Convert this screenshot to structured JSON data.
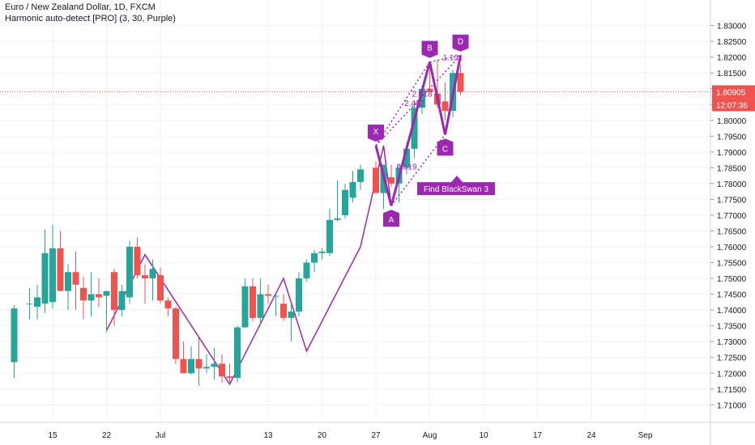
{
  "header": {
    "symbol_title": "Euro / New Zealand Dollar, 1D, FXCM",
    "indicator_label": "Harmonic auto-detect [PRO] (3, 30, Purple)"
  },
  "colors": {
    "up_candle": "#26a69a",
    "down_candle": "#ef5350",
    "pattern": "#9c27b0",
    "zigzag": "#9c27b0",
    "price_line": "#ef5350",
    "grid": "#f0f3fa",
    "axis_text": "#131722"
  },
  "chart_data": {
    "type": "candlestick",
    "y_axis_labels": [
      "1.83000",
      "1.82500",
      "1.82000",
      "1.81500",
      "1.81000",
      "1.80500",
      "1.80000",
      "1.79500",
      "1.79000",
      "1.78500",
      "1.78000",
      "1.77500",
      "1.77000",
      "1.76500",
      "1.76000",
      "1.75500",
      "1.75000",
      "1.74500",
      "1.74000",
      "1.73500",
      "1.73000",
      "1.72500",
      "1.72000",
      "1.71500",
      "1.71000"
    ],
    "ylim": [
      1.7065,
      1.8345
    ],
    "x_axis_labels": [
      "15",
      "22",
      "Jul",
      "13",
      "20",
      "27",
      "Aug",
      "10",
      "17",
      "24",
      "Sep"
    ],
    "x_label_day_index": [
      0,
      7,
      14,
      28,
      35,
      42,
      49,
      56,
      63,
      70,
      77
    ],
    "grid": true,
    "current_price": {
      "value": 1.80905,
      "label": "1.80905",
      "countdown": "12:07:36"
    },
    "candles": [
      {
        "day": -5,
        "o": 1.7235,
        "h": 1.7415,
        "l": 1.7185,
        "c": 1.7405
      },
      {
        "day": -3,
        "o": 1.742,
        "h": 1.747,
        "l": 1.737,
        "c": 1.742
      },
      {
        "day": -2,
        "o": 1.741,
        "h": 1.748,
        "l": 1.737,
        "c": 1.744
      },
      {
        "day": -1,
        "o": 1.742,
        "h": 1.7655,
        "l": 1.739,
        "c": 1.758
      },
      {
        "day": 0,
        "o": 1.7425,
        "h": 1.767,
        "l": 1.7405,
        "c": 1.7595
      },
      {
        "day": 1,
        "o": 1.7595,
        "h": 1.765,
        "l": 1.746,
        "c": 1.746
      },
      {
        "day": 2,
        "o": 1.746,
        "h": 1.7545,
        "l": 1.74,
        "c": 1.752
      },
      {
        "day": 3,
        "o": 1.752,
        "h": 1.7585,
        "l": 1.74,
        "c": 1.748
      },
      {
        "day": 4,
        "o": 1.747,
        "h": 1.7505,
        "l": 1.737,
        "c": 1.743
      },
      {
        "day": 5,
        "o": 1.743,
        "h": 1.752,
        "l": 1.738,
        "c": 1.745
      },
      {
        "day": 6,
        "o": 1.745,
        "h": 1.75,
        "l": 1.741,
        "c": 1.744
      },
      {
        "day": 7,
        "o": 1.7445,
        "h": 1.746,
        "l": 1.733,
        "c": 1.746
      },
      {
        "day": 8,
        "o": 1.752,
        "h": 1.753,
        "l": 1.735,
        "c": 1.74
      },
      {
        "day": 9,
        "o": 1.74,
        "h": 1.748,
        "l": 1.738,
        "c": 1.746
      },
      {
        "day": 10,
        "o": 1.744,
        "h": 1.762,
        "l": 1.742,
        "c": 1.76
      },
      {
        "day": 11,
        "o": 1.76,
        "h": 1.763,
        "l": 1.75,
        "c": 1.751
      },
      {
        "day": 12,
        "o": 1.751,
        "h": 1.7545,
        "l": 1.742,
        "c": 1.75
      },
      {
        "day": 13,
        "o": 1.75,
        "h": 1.756,
        "l": 1.743,
        "c": 1.753
      },
      {
        "day": 14,
        "o": 1.751,
        "h": 1.7535,
        "l": 1.742,
        "c": 1.743
      },
      {
        "day": 15,
        "o": 1.743,
        "h": 1.744,
        "l": 1.738,
        "c": 1.7405
      },
      {
        "day": 16,
        "o": 1.7405,
        "h": 1.741,
        "l": 1.723,
        "c": 1.7245
      },
      {
        "day": 17,
        "o": 1.7245,
        "h": 1.73,
        "l": 1.72,
        "c": 1.72
      },
      {
        "day": 18,
        "o": 1.72,
        "h": 1.7285,
        "l": 1.7195,
        "c": 1.7245
      },
      {
        "day": 19,
        "o": 1.7245,
        "h": 1.731,
        "l": 1.716,
        "c": 1.7215
      },
      {
        "day": 20,
        "o": 1.7215,
        "h": 1.726,
        "l": 1.72,
        "c": 1.722
      },
      {
        "day": 21,
        "o": 1.722,
        "h": 1.728,
        "l": 1.718,
        "c": 1.723
      },
      {
        "day": 22,
        "o": 1.723,
        "h": 1.726,
        "l": 1.717,
        "c": 1.719
      },
      {
        "day": 23,
        "o": 1.719,
        "h": 1.723,
        "l": 1.7165,
        "c": 1.7185
      },
      {
        "day": 24,
        "o": 1.7185,
        "h": 1.735,
        "l": 1.717,
        "c": 1.7345
      },
      {
        "day": 25,
        "o": 1.7345,
        "h": 1.75,
        "l": 1.7345,
        "c": 1.7475
      },
      {
        "day": 26,
        "o": 1.7475,
        "h": 1.75,
        "l": 1.7365,
        "c": 1.7375
      },
      {
        "day": 27,
        "o": 1.7375,
        "h": 1.75,
        "l": 1.735,
        "c": 1.745
      },
      {
        "day": 28,
        "o": 1.745,
        "h": 1.748,
        "l": 1.742,
        "c": 1.7445
      },
      {
        "day": 29,
        "o": 1.7445,
        "h": 1.745,
        "l": 1.738,
        "c": 1.7445
      },
      {
        "day": 30,
        "o": 1.742,
        "h": 1.745,
        "l": 1.7365,
        "c": 1.7375
      },
      {
        "day": 31,
        "o": 1.7375,
        "h": 1.742,
        "l": 1.73,
        "c": 1.7395
      },
      {
        "day": 32,
        "o": 1.7395,
        "h": 1.752,
        "l": 1.738,
        "c": 1.75
      },
      {
        "day": 33,
        "o": 1.75,
        "h": 1.756,
        "l": 1.749,
        "c": 1.755
      },
      {
        "day": 34,
        "o": 1.755,
        "h": 1.759,
        "l": 1.752,
        "c": 1.758
      },
      {
        "day": 35,
        "o": 1.758,
        "h": 1.7595,
        "l": 1.756,
        "c": 1.7585
      },
      {
        "day": 36,
        "o": 1.758,
        "h": 1.772,
        "l": 1.757,
        "c": 1.7685
      },
      {
        "day": 37,
        "o": 1.7685,
        "h": 1.781,
        "l": 1.768,
        "c": 1.769
      },
      {
        "day": 38,
        "o": 1.77,
        "h": 1.78,
        "l": 1.769,
        "c": 1.778
      },
      {
        "day": 39,
        "o": 1.7755,
        "h": 1.784,
        "l": 1.774,
        "c": 1.7805
      },
      {
        "day": 40,
        "o": 1.7805,
        "h": 1.786,
        "l": 1.778,
        "c": 1.7845
      },
      {
        "day": 42,
        "o": 1.785,
        "h": 1.787,
        "l": 1.777,
        "c": 1.777
      },
      {
        "day": 43,
        "o": 1.777,
        "h": 1.786,
        "l": 1.772,
        "c": 1.786
      },
      {
        "day": 44,
        "o": 1.782,
        "h": 1.786,
        "l": 1.779,
        "c": 1.78
      },
      {
        "day": 45,
        "o": 1.78,
        "h": 1.786,
        "l": 1.774,
        "c": 1.785
      },
      {
        "day": 46,
        "o": 1.785,
        "h": 1.793,
        "l": 1.783,
        "c": 1.791
      },
      {
        "day": 47,
        "o": 1.791,
        "h": 1.806,
        "l": 1.788,
        "c": 1.804
      },
      {
        "day": 48,
        "o": 1.804,
        "h": 1.811,
        "l": 1.802,
        "c": 1.81
      },
      {
        "day": 49,
        "o": 1.81,
        "h": 1.818,
        "l": 1.809,
        "c": 1.809
      },
      {
        "day": 50,
        "o": 1.8085,
        "h": 1.819,
        "l": 1.804,
        "c": 1.805
      },
      {
        "day": 51,
        "o": 1.806,
        "h": 1.812,
        "l": 1.8,
        "c": 1.803
      },
      {
        "day": 52,
        "o": 1.803,
        "h": 1.816,
        "l": 1.801,
        "c": 1.815
      },
      {
        "day": 53,
        "o": 1.815,
        "h": 1.8175,
        "l": 1.808,
        "c": 1.809
      }
    ]
  },
  "pattern": {
    "points": [
      {
        "label": "X",
        "day": 42,
        "price": 1.792,
        "pos": "above"
      },
      {
        "label": "A",
        "day": 44,
        "price": 1.773,
        "pos": "below"
      },
      {
        "label": "B",
        "day": 49,
        "price": 1.8185,
        "pos": "above"
      },
      {
        "label": "C",
        "day": 51,
        "price": 1.7955,
        "pos": "below"
      },
      {
        "label": "D",
        "day": 53,
        "price": 1.8205,
        "pos": "above"
      }
    ],
    "ratios": [
      {
        "text": "2.618",
        "day": 48,
        "price": 1.8075
      },
      {
        "text": "2.482",
        "day": 47,
        "price": 1.8045
      },
      {
        "text": "0.519",
        "day": 46,
        "price": 1.7845
      },
      {
        "text": "1.131",
        "day": 52,
        "price": 1.819
      }
    ],
    "tag": {
      "text": "Find BlackSwan 3",
      "day": 52,
      "price": 1.782
    }
  },
  "zigzag": [
    {
      "day": 7,
      "price": 1.7335
    },
    {
      "day": 12,
      "price": 1.7575
    },
    {
      "day": 23,
      "price": 1.7165
    },
    {
      "day": 30,
      "price": 1.75
    },
    {
      "day": 33,
      "price": 1.727
    },
    {
      "day": 40,
      "price": 1.76
    },
    {
      "day": 43,
      "price": 1.792
    },
    {
      "day": 44,
      "price": 1.773
    }
  ]
}
